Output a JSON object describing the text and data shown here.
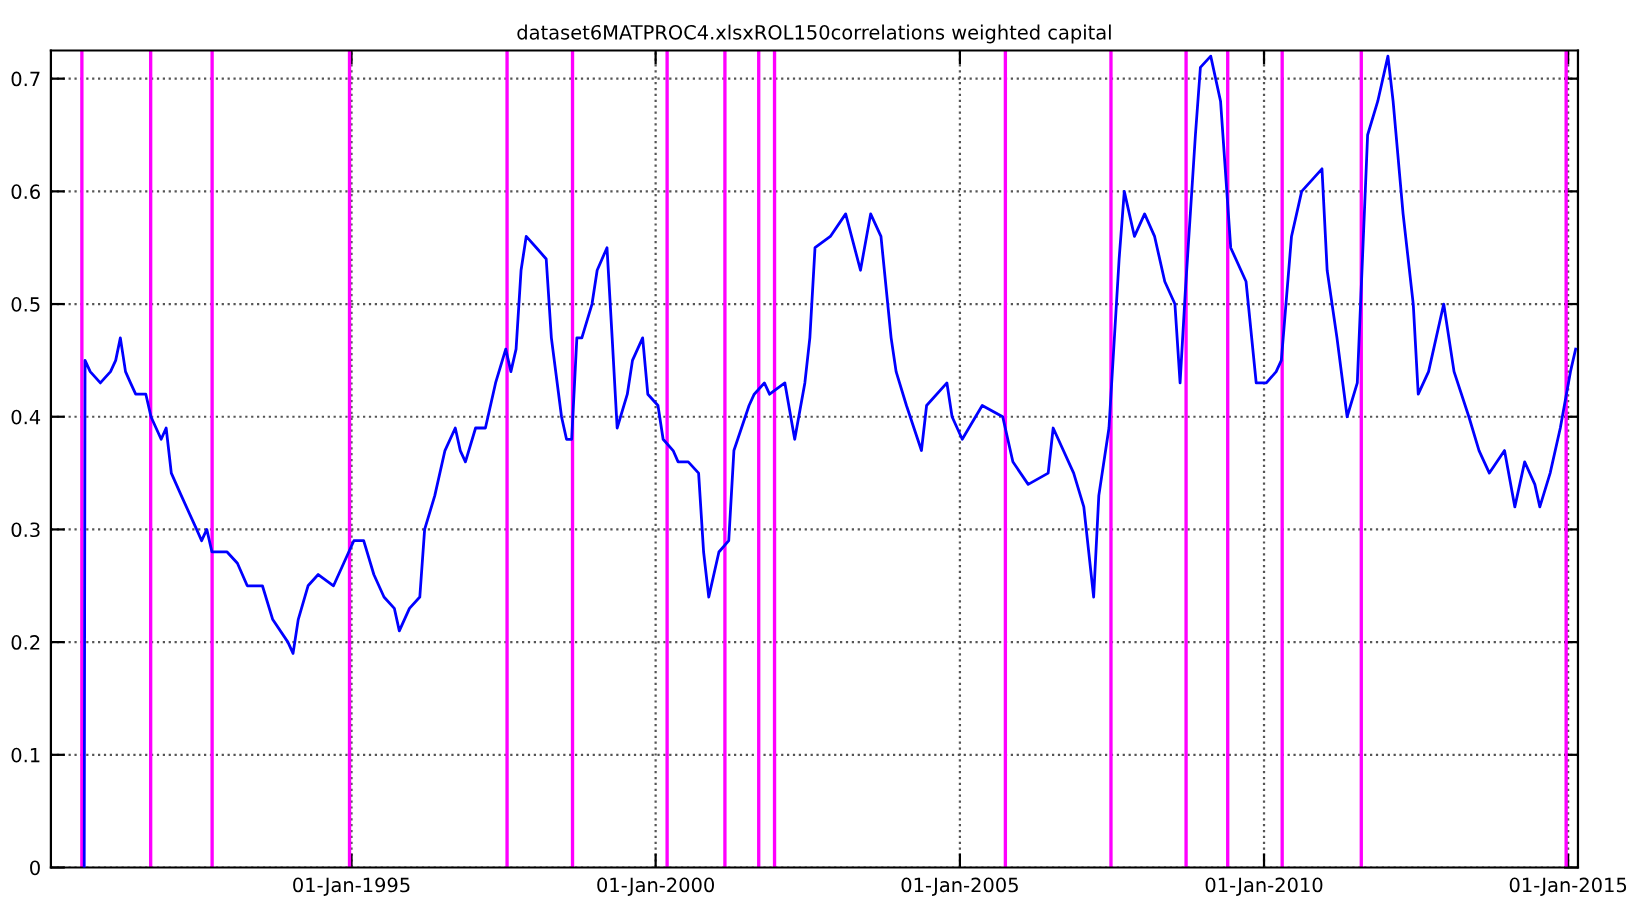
{
  "chart_data": {
    "type": "line",
    "title": "dataset6MATPROC4.xlsxROL150correlations weighted capital",
    "xlim": [
      "1990-01-22",
      "2015-03-01"
    ],
    "ylim": [
      0,
      0.725
    ],
    "xticks": [
      {
        "value": "1995-01-01",
        "label": "01-Jan-1995"
      },
      {
        "value": "2000-01-01",
        "label": "01-Jan-2000"
      },
      {
        "value": "2005-01-01",
        "label": "01-Jan-2005"
      },
      {
        "value": "2010-01-01",
        "label": "01-Jan-2010"
      },
      {
        "value": "2015-01-01",
        "label": "01-Jan-2015"
      }
    ],
    "yticks": [
      0,
      0.1,
      0.2,
      0.3,
      0.4,
      0.5,
      0.6,
      0.7
    ],
    "grid": true,
    "line_style": "solid",
    "marker": "none",
    "series": [
      {
        "color": "#0000ff",
        "x": [
          "1990-08-10",
          "1990-08-15",
          "1990-09",
          "1990-11",
          "1991-01",
          "1991-02",
          "1991-03",
          "1991-04",
          "1991-05",
          "1991-06",
          "1991-08",
          "1991-09",
          "1991-11",
          "1991-12",
          "1992-01",
          "1992-03",
          "1992-06",
          "1992-07",
          "1992-08",
          "1992-09",
          "1992-12",
          "1993-02",
          "1993-04",
          "1993-07",
          "1993-09",
          "1993-12",
          "1994-01",
          "1994-02",
          "1994-04",
          "1994-06",
          "1994-09",
          "1994-11",
          "1995-01",
          "1995-03",
          "1995-05",
          "1995-07",
          "1995-09",
          "1995-10",
          "1995-12",
          "1996-02",
          "1996-03",
          "1996-05",
          "1996-07",
          "1996-09",
          "1996-10",
          "1996-11",
          "1997-01",
          "1997-03",
          "1997-05",
          "1997-07",
          "1997-08",
          "1997-09",
          "1997-10",
          "1997-11",
          "1998-01",
          "1998-03",
          "1998-04",
          "1998-06",
          "1998-07",
          "1998-08",
          "1998-09",
          "1998-10",
          "1998-12",
          "1999-01",
          "1999-03",
          "1999-04",
          "1999-05",
          "1999-07",
          "1999-08",
          "1999-10",
          "1999-11",
          "2000-01",
          "2000-02",
          "2000-04",
          "2000-05",
          "2000-07",
          "2000-09",
          "2000-10",
          "2000-11",
          "2001-01",
          "2001-03",
          "2001-04",
          "2001-07",
          "2001-08",
          "2001-10",
          "2001-11",
          "2002-02",
          "2002-04",
          "2002-06",
          "2002-07",
          "2002-08",
          "2002-11",
          "2003-02",
          "2003-05",
          "2003-07",
          "2003-09",
          "2003-11",
          "2003-12",
          "2004-02",
          "2004-05",
          "2004-06",
          "2004-10",
          "2004-11",
          "2005-01",
          "2005-05",
          "2005-09",
          "2005-11",
          "2006-02",
          "2006-06",
          "2006-07",
          "2006-11",
          "2007-01",
          "2007-03",
          "2007-04",
          "2007-06",
          "2007-08",
          "2007-09",
          "2007-11",
          "2008-01",
          "2008-03",
          "2008-05",
          "2008-07",
          "2008-08",
          "2008-09",
          "2008-11",
          "2008-12",
          "2009-02",
          "2009-04",
          "2009-06",
          "2009-09",
          "2009-11",
          "2010-01",
          "2010-03",
          "2010-04",
          "2010-06",
          "2010-08",
          "2010-12",
          "2011-01",
          "2011-03",
          "2011-05",
          "2011-07",
          "2011-09",
          "2011-11",
          "2012-01",
          "2012-02",
          "2012-04",
          "2012-06",
          "2012-07",
          "2012-09",
          "2012-12",
          "2013-02",
          "2013-05",
          "2013-07",
          "2013-09",
          "2013-12",
          "2014-02",
          "2014-04",
          "2014-06",
          "2014-07",
          "2014-09",
          "2014-11",
          "2015-01",
          "2015-02"
        ],
        "values": [
          0,
          0.45,
          0.44,
          0.43,
          0.44,
          0.45,
          0.47,
          0.44,
          0.43,
          0.42,
          0.42,
          0.4,
          0.38,
          0.39,
          0.35,
          0.33,
          0.3,
          0.29,
          0.3,
          0.28,
          0.28,
          0.27,
          0.25,
          0.25,
          0.22,
          0.2,
          0.19,
          0.22,
          0.25,
          0.26,
          0.25,
          0.27,
          0.29,
          0.29,
          0.26,
          0.24,
          0.23,
          0.21,
          0.23,
          0.24,
          0.3,
          0.33,
          0.37,
          0.39,
          0.37,
          0.36,
          0.39,
          0.39,
          0.43,
          0.46,
          0.44,
          0.46,
          0.53,
          0.56,
          0.55,
          0.54,
          0.47,
          0.4,
          0.38,
          0.38,
          0.47,
          0.47,
          0.5,
          0.53,
          0.55,
          0.47,
          0.39,
          0.42,
          0.45,
          0.47,
          0.42,
          0.41,
          0.38,
          0.37,
          0.36,
          0.36,
          0.35,
          0.28,
          0.24,
          0.28,
          0.29,
          0.37,
          0.41,
          0.42,
          0.43,
          0.42,
          0.43,
          0.38,
          0.43,
          0.47,
          0.55,
          0.56,
          0.58,
          0.53,
          0.58,
          0.56,
          0.47,
          0.44,
          0.41,
          0.37,
          0.41,
          0.43,
          0.4,
          0.38,
          0.41,
          0.4,
          0.36,
          0.34,
          0.35,
          0.39,
          0.35,
          0.32,
          0.24,
          0.33,
          0.39,
          0.54,
          0.6,
          0.56,
          0.58,
          0.56,
          0.52,
          0.5,
          0.43,
          0.51,
          0.65,
          0.71,
          0.72,
          0.68,
          0.55,
          0.52,
          0.43,
          0.43,
          0.44,
          0.45,
          0.56,
          0.6,
          0.62,
          0.53,
          0.47,
          0.4,
          0.43,
          0.65,
          0.68,
          0.72,
          0.68,
          0.58,
          0.5,
          0.42,
          0.44,
          0.5,
          0.44,
          0.4,
          0.37,
          0.35,
          0.37,
          0.32,
          0.36,
          0.34,
          0.32,
          0.35,
          0.39,
          0.44,
          0.46
        ]
      }
    ],
    "ref_lines": [
      {
        "axis": "x",
        "value": "1990-07-27",
        "color": "#ff00ff"
      },
      {
        "axis": "x",
        "value": "1991-09-13",
        "color": "#ff00ff"
      },
      {
        "axis": "x",
        "value": "1992-09-16",
        "color": "#ff00ff"
      },
      {
        "axis": "x",
        "value": "1994-12-20",
        "color": "#ff00ff"
      },
      {
        "axis": "x",
        "value": "1997-07-23",
        "color": "#ff00ff"
      },
      {
        "axis": "x",
        "value": "1998-08-20",
        "color": "#ff00ff"
      },
      {
        "axis": "x",
        "value": "2000-03-10",
        "color": "#ff00ff"
      },
      {
        "axis": "x",
        "value": "2001-02-20",
        "color": "#ff00ff"
      },
      {
        "axis": "x",
        "value": "2001-09-11",
        "color": "#ff00ff"
      },
      {
        "axis": "x",
        "value": "2001-12-15",
        "color": "#ff00ff"
      },
      {
        "axis": "x",
        "value": "2005-10-01",
        "color": "#ff00ff"
      },
      {
        "axis": "x",
        "value": "2007-06-27",
        "color": "#ff00ff"
      },
      {
        "axis": "x",
        "value": "2008-09-20",
        "color": "#ff00ff"
      },
      {
        "axis": "x",
        "value": "2009-05-28",
        "color": "#ff00ff"
      },
      {
        "axis": "x",
        "value": "2010-04-20",
        "color": "#ff00ff"
      },
      {
        "axis": "x",
        "value": "2011-08-08",
        "color": "#ff00ff"
      },
      {
        "axis": "x",
        "value": "2014-12-20",
        "color": "#ff00ff"
      }
    ]
  }
}
